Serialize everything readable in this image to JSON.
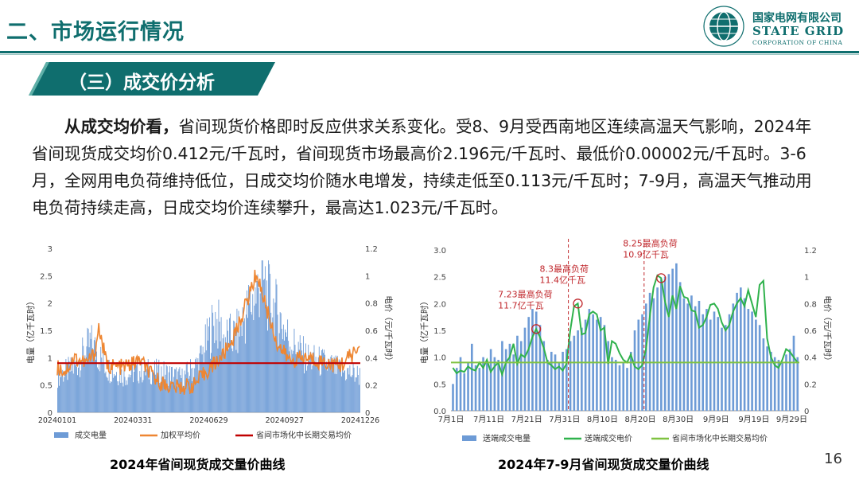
{
  "header": {
    "title": "二、市场运行情况"
  },
  "logo": {
    "cn": "国家电网有限公司",
    "en": "STATE GRID",
    "sub": "CORPORATION OF CHINA",
    "ring_text": "STATE GRID CORPORATION OF CHINA"
  },
  "section": {
    "title": "（三）成交价分析"
  },
  "paragraph": {
    "lead": "从成交均价看，",
    "body": "省间现货价格即时反应供求关系变化。受8、9月受西南地区连续高温天气影响，2024年省间现货成交均价0.412元/千瓦时，省间现货市场最高价2.196元/千瓦时、最低价0.00002元/千瓦时。3-6月，全网用电负荷维持低位，日成交均价随水电增发，持续走低至0.113元/千瓦时；7-9月，高温天气推动用电负荷持续走高，日成交均价连续攀升，最高达1.023元/千瓦时。"
  },
  "page_number": "16",
  "colors": {
    "teal": "#0f6e6e",
    "bar_blue": "#6d9bd6",
    "orange": "#ee8632",
    "red": "#c00000",
    "green": "#2fb24c",
    "green_light": "#7fc241",
    "annot_red": "#c0282d"
  },
  "chart_data": [
    {
      "type": "bar",
      "title": "2024年省间现货成交量价曲线",
      "ylabel": "电量（亿千瓦时）",
      "y2label": "电价（元/千瓦时）",
      "ylim": [
        0,
        3
      ],
      "y2lim": [
        0,
        1.2
      ],
      "yticks": [
        "0",
        "0.5",
        "1",
        "1.5",
        "2",
        "2.5",
        "3"
      ],
      "y2ticks": [
        "0",
        "0.2",
        "0.4",
        "0.6",
        "0.8",
        "1",
        "1.2"
      ],
      "xticks": [
        "20240101",
        "20240331",
        "20240629",
        "20240927",
        "20241226"
      ],
      "legend": [
        "成交电量",
        "加权平均价",
        "省间市场化中长期交易均价"
      ],
      "legend_position": "bottom",
      "grid": false,
      "bar_volume_keypoints": [
        [
          0,
          0.75
        ],
        [
          20,
          0.9
        ],
        [
          40,
          1.4
        ],
        [
          60,
          0.9
        ],
        [
          80,
          0.75
        ],
        [
          100,
          0.85
        ],
        [
          130,
          0.8
        ],
        [
          150,
          0.7
        ],
        [
          170,
          1.0
        ],
        [
          180,
          1.45
        ],
        [
          190,
          1.9
        ],
        [
          200,
          1.5
        ],
        [
          215,
          1.55
        ],
        [
          230,
          2.1
        ],
        [
          240,
          2.4
        ],
        [
          245,
          2.75
        ],
        [
          255,
          2.3
        ],
        [
          265,
          2.0
        ],
        [
          280,
          1.45
        ],
        [
          300,
          1.1
        ],
        [
          320,
          1.0
        ],
        [
          340,
          0.85
        ],
        [
          365,
          0.75
        ]
      ],
      "price_keypoints": [
        [
          0,
          0.33
        ],
        [
          10,
          0.3
        ],
        [
          20,
          0.4
        ],
        [
          35,
          0.36
        ],
        [
          45,
          0.43
        ],
        [
          50,
          0.62
        ],
        [
          60,
          0.34
        ],
        [
          80,
          0.33
        ],
        [
          100,
          0.38
        ],
        [
          115,
          0.26
        ],
        [
          130,
          0.2
        ],
        [
          145,
          0.18
        ],
        [
          165,
          0.2
        ],
        [
          180,
          0.3
        ],
        [
          200,
          0.42
        ],
        [
          215,
          0.58
        ],
        [
          230,
          0.84
        ],
        [
          240,
          1.02
        ],
        [
          255,
          0.7
        ],
        [
          265,
          0.5
        ],
        [
          280,
          0.38
        ],
        [
          300,
          0.4
        ],
        [
          320,
          0.37
        ],
        [
          340,
          0.34
        ],
        [
          355,
          0.42
        ],
        [
          365,
          0.48
        ]
      ],
      "medium_long_term_avg": 0.36
    },
    {
      "type": "bar",
      "title": "2024年7-9月省间现货成交量价曲线",
      "ylabel": "电量（亿千瓦时）",
      "y2label": "电价（元/千瓦时）",
      "ylim": [
        0,
        3
      ],
      "y2lim": [
        0,
        1.2
      ],
      "yticks": [
        "0.0",
        "0.5",
        "1.0",
        "1.5",
        "2.0",
        "2.5",
        "3.0"
      ],
      "y2ticks": [
        "0",
        "0.2",
        "0.4",
        "0.6",
        "0.8",
        "1",
        "1.2"
      ],
      "xticks": [
        "7月1日",
        "7月11日",
        "7月21日",
        "7月31日",
        "8月10日",
        "8月20日",
        "8月30日",
        "9月9日",
        "9月19日",
        "9月29日"
      ],
      "legend": [
        "送端成交电量",
        "送端成交电价",
        "省间市场化中长期交易均价"
      ],
      "legend_position": "bottom",
      "grid": false,
      "volumes": [
        0.5,
        0.8,
        1.0,
        0.7,
        0.9,
        1.25,
        0.85,
        0.8,
        1.0,
        0.9,
        1.15,
        1.0,
        0.95,
        1.3,
        1.15,
        1.25,
        1.05,
        1.4,
        1.3,
        1.55,
        1.75,
        1.9,
        1.85,
        1.6,
        1.3,
        0.95,
        1.1,
        1.05,
        0.9,
        1.1,
        1.15,
        1.3,
        1.4,
        1.5,
        1.55,
        1.7,
        1.9,
        1.8,
        1.7,
        1.75,
        1.6,
        1.3,
        1.0,
        0.95,
        0.85,
        0.9,
        0.8,
        1.1,
        1.5,
        1.7,
        1.8,
        2.0,
        2.2,
        2.1,
        2.3,
        2.45,
        2.5,
        2.55,
        2.65,
        2.75,
        2.4,
        2.1,
        2.0,
        2.15,
        1.95,
        2.05,
        1.8,
        1.9,
        1.7,
        1.85,
        1.75,
        1.55,
        1.6,
        1.8,
        2.0,
        2.2,
        2.3,
        2.1,
        1.9,
        1.85,
        1.7,
        1.6,
        1.35,
        1.2,
        1.1,
        1.0,
        0.95,
        0.9,
        1.05,
        1.15,
        1.4,
        1.0
      ],
      "prices": [
        0.32,
        0.28,
        0.3,
        0.29,
        0.33,
        0.31,
        0.3,
        0.36,
        0.32,
        0.38,
        0.29,
        0.33,
        0.36,
        0.27,
        0.36,
        0.4,
        0.5,
        0.35,
        0.42,
        0.4,
        0.46,
        0.55,
        0.61,
        0.55,
        0.47,
        0.36,
        0.34,
        0.31,
        0.33,
        0.3,
        0.35,
        0.6,
        0.78,
        0.8,
        0.57,
        0.58,
        0.72,
        0.74,
        0.72,
        0.6,
        0.62,
        0.35,
        0.52,
        0.5,
        0.43,
        0.38,
        0.36,
        0.42,
        0.33,
        0.31,
        0.34,
        0.46,
        0.7,
        0.92,
        1.01,
        0.99,
        0.82,
        0.7,
        0.86,
        0.76,
        0.93,
        0.85,
        0.84,
        0.75,
        0.74,
        0.62,
        0.64,
        0.7,
        0.79,
        0.8,
        0.76,
        0.66,
        0.6,
        0.64,
        0.74,
        0.8,
        0.84,
        0.78,
        0.9,
        0.8,
        0.7,
        0.94,
        0.97,
        0.54,
        0.4,
        0.34,
        0.32,
        0.38,
        0.46,
        0.44,
        0.4,
        0.36
      ],
      "medium_long_term_avg": 0.36,
      "annotations": [
        {
          "label": "7.23最高负荷 11.7亿千瓦",
          "day_index": 22
        },
        {
          "label": "8.3最高负荷 11.4亿千瓦",
          "day_index": 33
        },
        {
          "label": "8.25最高负荷 10.9亿千瓦",
          "day_index": 55
        }
      ]
    }
  ]
}
